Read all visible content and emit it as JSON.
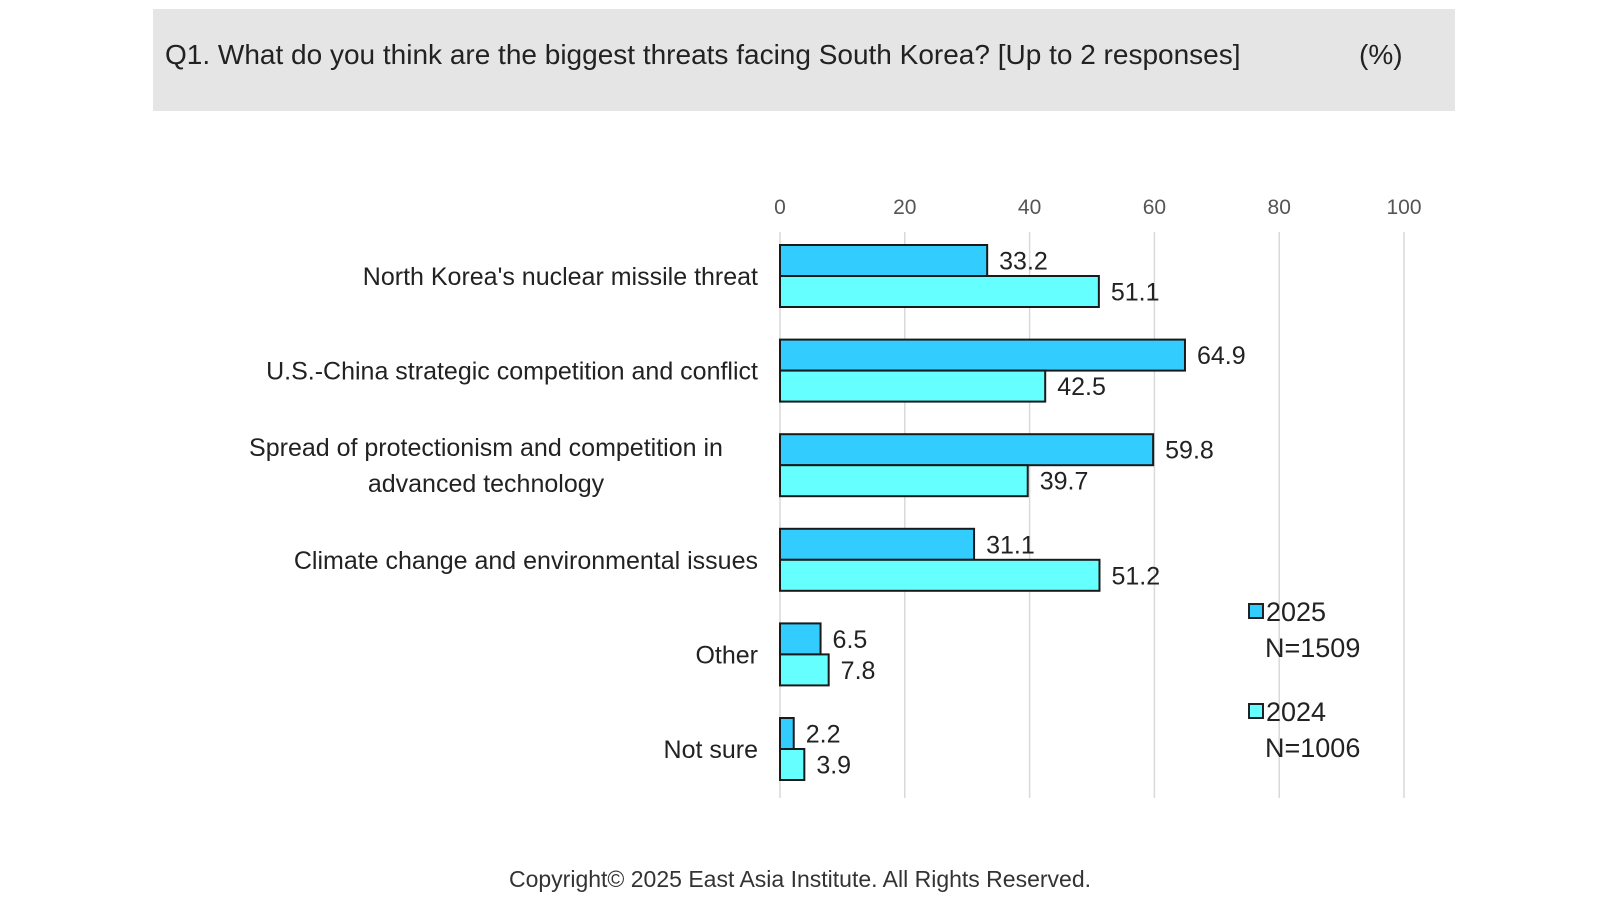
{
  "header": {
    "question": "Q1. What do you think are the biggest threats facing South Korea? [Up to 2 responses]",
    "unit": "(%)"
  },
  "chart_data": {
    "type": "bar",
    "orientation": "horizontal",
    "title": "Q1. What do you think are the biggest threats facing South Korea? [Up to 2 responses]",
    "unit": "(%)",
    "categories": [
      [
        "North Korea's nuclear missile threat"
      ],
      [
        "U.S.-China strategic competition and conflict"
      ],
      [
        "Spread of protectionism and competition in",
        "advanced technology"
      ],
      [
        "Climate change and environmental issues"
      ],
      [
        "Other"
      ],
      [
        "Not sure"
      ]
    ],
    "series": [
      {
        "name": "2025",
        "sample": "N=1509",
        "color": "#33ccff",
        "values": [
          33.2,
          64.9,
          59.8,
          31.1,
          6.5,
          2.2
        ]
      },
      {
        "name": "2024",
        "sample": "N=1006",
        "color": "#66ffff",
        "values": [
          51.1,
          42.5,
          39.7,
          51.2,
          7.8,
          3.9
        ]
      }
    ],
    "xlim": [
      0,
      100
    ],
    "xticks": [
      "0",
      "20",
      "40",
      "60",
      "80",
      "100"
    ],
    "axis_position": "top",
    "grid": true,
    "legend_position": "right"
  },
  "footer": {
    "copyright": "Copyright© 2025 East Asia Institute. All Rights Reserved."
  }
}
